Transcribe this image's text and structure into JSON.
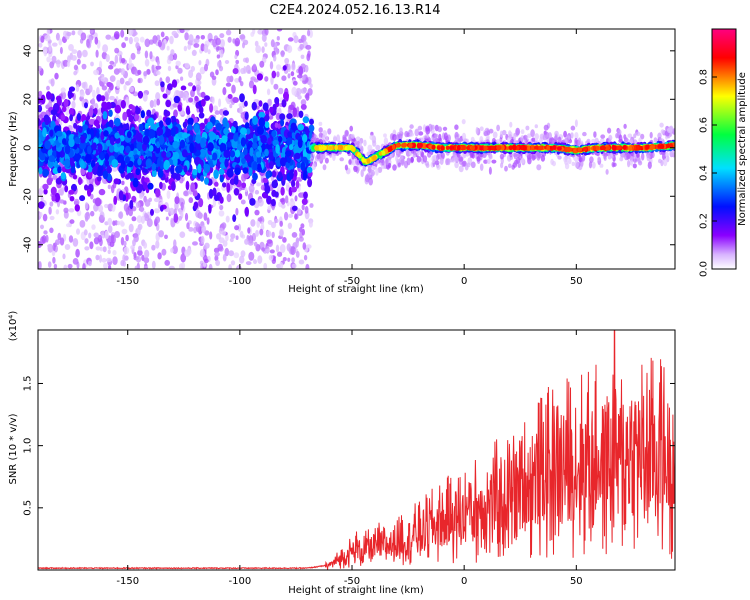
{
  "title": "C2E4.2024.052.16.13.R14",
  "chart_data": [
    {
      "type": "heatmap",
      "xlabel": "Height of straight line (km)",
      "ylabel": "Frequency (Hz)",
      "xlim": [
        -190,
        94
      ],
      "ylim": [
        -50,
        49
      ],
      "xticks": [
        -150,
        -100,
        -50,
        0,
        50
      ],
      "yticks": [
        -40,
        -20,
        0,
        20,
        40
      ],
      "colorbar": {
        "label": "Normalized spectral amplitude",
        "range": [
          0,
          1
        ],
        "ticks": [
          "0.0",
          "0.2",
          "0.4",
          "0.6",
          "0.8"
        ],
        "colors": [
          "#ffffff",
          "#d8b4ff",
          "#8a00ff",
          "#0010ff",
          "#00e0ff",
          "#00ff40",
          "#ffff00",
          "#ff0000",
          "#ff0080"
        ]
      },
      "ridge": [
        {
          "x": -68,
          "y": 0
        },
        {
          "x": -60,
          "y": 0
        },
        {
          "x": -50,
          "y": 0
        },
        {
          "x": -44,
          "y": -6
        },
        {
          "x": -38,
          "y": -3
        },
        {
          "x": -30,
          "y": 1
        },
        {
          "x": -20,
          "y": 1
        },
        {
          "x": -10,
          "y": 0
        },
        {
          "x": 0,
          "y": 0
        },
        {
          "x": 10,
          "y": 0
        },
        {
          "x": 20,
          "y": 0
        },
        {
          "x": 30,
          "y": 0
        },
        {
          "x": 40,
          "y": 0
        },
        {
          "x": 50,
          "y": -1
        },
        {
          "x": 60,
          "y": 0
        },
        {
          "x": 70,
          "y": 0
        },
        {
          "x": 80,
          "y": 0
        },
        {
          "x": 94,
          "y": 1
        }
      ]
    },
    {
      "type": "line",
      "series_color": "#e8262b",
      "xlabel": "Height of straight line (km)",
      "ylabel": "SNR (10 * v/v)",
      "exponent_label": "(x10⁴)",
      "xlim": [
        -190,
        94
      ],
      "ylim": [
        0,
        19300
      ],
      "xticks": [
        -150,
        -100,
        -50,
        0,
        50
      ],
      "yticks": [
        0.5,
        1.0,
        1.5
      ],
      "ytick_labels": [
        "0.5",
        "1.0",
        "1.5"
      ],
      "trend": [
        {
          "x": -190,
          "y": 150
        },
        {
          "x": -70,
          "y": 150
        },
        {
          "x": -60,
          "y": 400
        },
        {
          "x": -50,
          "y": 1500
        },
        {
          "x": -40,
          "y": 1800
        },
        {
          "x": -30,
          "y": 2200
        },
        {
          "x": -20,
          "y": 3000
        },
        {
          "x": -10,
          "y": 3800
        },
        {
          "x": 0,
          "y": 4500
        },
        {
          "x": 10,
          "y": 5200
        },
        {
          "x": 20,
          "y": 6000
        },
        {
          "x": 30,
          "y": 7000
        },
        {
          "x": 40,
          "y": 8000
        },
        {
          "x": 50,
          "y": 8500
        },
        {
          "x": 60,
          "y": 8800
        },
        {
          "x": 70,
          "y": 9000
        },
        {
          "x": 80,
          "y": 9200
        },
        {
          "x": 94,
          "y": 9000
        }
      ],
      "peaks": [
        {
          "x": -48,
          "y": 3100
        },
        {
          "x": -38,
          "y": 3800
        },
        {
          "x": -28,
          "y": 4400
        },
        {
          "x": -20,
          "y": 5500
        },
        {
          "x": 3,
          "y": 7000
        },
        {
          "x": 22,
          "y": 10800
        },
        {
          "x": 40,
          "y": 13200
        },
        {
          "x": 55,
          "y": 14300
        },
        {
          "x": 67,
          "y": 19300
        },
        {
          "x": 80,
          "y": 14000
        },
        {
          "x": 88,
          "y": 16400
        },
        {
          "x": 93,
          "y": 12500
        }
      ]
    }
  ]
}
